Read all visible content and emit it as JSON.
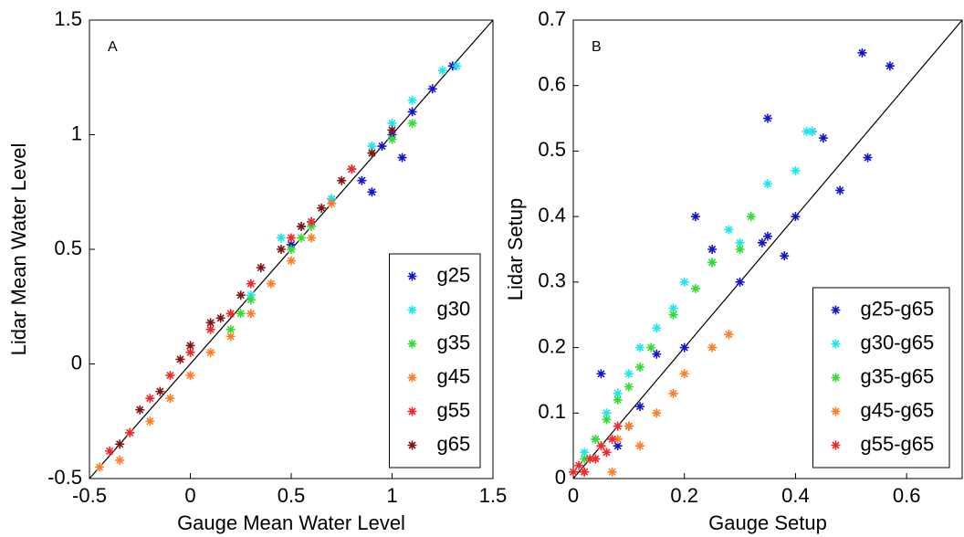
{
  "chart_data": [
    {
      "type": "scatter",
      "annotation": "A",
      "xlabel": "Gauge Mean Water Level",
      "ylabel": "Lidar Mean Water Level",
      "xlim": [
        -0.5,
        1.5
      ],
      "ylim": [
        -0.5,
        1.5
      ],
      "xticks": [
        -0.5,
        0,
        0.5,
        1,
        1.5
      ],
      "yticks": [
        -0.5,
        0,
        0.5,
        1,
        1.5
      ],
      "diagonal": true,
      "legend": "lower right",
      "marker": "*",
      "series": [
        {
          "name": "g25",
          "color": "#1414c8",
          "x": [
            0.7,
            0.8,
            0.85,
            0.9,
            0.95,
            1.0,
            1.05,
            1.1,
            1.2,
            1.3,
            0.6,
            0.5
          ],
          "values": [
            0.72,
            0.85,
            0.8,
            0.75,
            0.95,
            1.0,
            0.9,
            1.1,
            1.2,
            1.3,
            0.62,
            0.52
          ]
        },
        {
          "name": "g30",
          "color": "#1ee6f0",
          "x": [
            0.3,
            0.45,
            0.55,
            0.7,
            0.8,
            0.9,
            1.0,
            1.1,
            1.25,
            1.32
          ],
          "values": [
            0.3,
            0.55,
            0.6,
            0.72,
            0.85,
            0.95,
            1.05,
            1.15,
            1.28,
            1.3
          ]
        },
        {
          "name": "g35",
          "color": "#32dc32",
          "x": [
            0.2,
            0.25,
            0.3,
            0.5,
            0.55,
            0.6,
            0.9,
            1.0,
            1.1
          ],
          "values": [
            0.15,
            0.22,
            0.28,
            0.5,
            0.55,
            0.6,
            0.92,
            0.98,
            1.05
          ]
        },
        {
          "name": "g45",
          "color": "#ff7d23",
          "x": [
            -0.45,
            -0.35,
            -0.3,
            -0.2,
            -0.1,
            0,
            0.1,
            0.2,
            0.3,
            0.4,
            0.5,
            0.6,
            0.7
          ],
          "values": [
            -0.45,
            -0.42,
            -0.3,
            -0.25,
            -0.15,
            -0.05,
            0.05,
            0.12,
            0.22,
            0.35,
            0.45,
            0.55,
            0.7
          ]
        },
        {
          "name": "g55",
          "color": "#f02828",
          "x": [
            -0.4,
            -0.3,
            -0.2,
            -0.1,
            0,
            0.1,
            0.2,
            0.3,
            0.5,
            0.6,
            0.8
          ],
          "values": [
            -0.38,
            -0.3,
            -0.15,
            -0.05,
            0.05,
            0.15,
            0.22,
            0.35,
            0.55,
            0.62,
            0.85
          ]
        },
        {
          "name": "g65",
          "color": "#801414",
          "x": [
            -0.35,
            -0.25,
            -0.15,
            -0.05,
            0,
            0.1,
            0.15,
            0.25,
            0.35,
            0.45,
            0.55,
            0.65,
            0.75,
            0.9,
            1.0
          ],
          "values": [
            -0.35,
            -0.2,
            -0.12,
            0.02,
            0.08,
            0.18,
            0.2,
            0.3,
            0.42,
            0.5,
            0.6,
            0.68,
            0.8,
            0.92,
            1.02
          ]
        }
      ]
    },
    {
      "type": "scatter",
      "annotation": "B",
      "xlabel": "Gauge Setup",
      "ylabel": "Lidar Setup",
      "xlim": [
        0,
        0.7
      ],
      "ylim": [
        0,
        0.7
      ],
      "xticks": [
        0,
        0.2,
        0.4,
        0.6
      ],
      "yticks": [
        0,
        0.1,
        0.2,
        0.3,
        0.4,
        0.5,
        0.6,
        0.7
      ],
      "diagonal": true,
      "legend": "lower right",
      "marker": "*",
      "series": [
        {
          "name": "g25-g65",
          "color": "#1414c8",
          "x": [
            0.05,
            0.08,
            0.1,
            0.12,
            0.15,
            0.2,
            0.22,
            0.25,
            0.3,
            0.35,
            0.35,
            0.4,
            0.43,
            0.45,
            0.48,
            0.52,
            0.53,
            0.57,
            0.34,
            0.38
          ],
          "values": [
            0.16,
            0.05,
            0.08,
            0.11,
            0.19,
            0.2,
            0.4,
            0.35,
            0.3,
            0.55,
            0.37,
            0.4,
            0.53,
            0.52,
            0.44,
            0.65,
            0.49,
            0.63,
            0.36,
            0.34
          ]
        },
        {
          "name": "g30-g65",
          "color": "#1ee6f0",
          "x": [
            0.02,
            0.04,
            0.06,
            0.08,
            0.1,
            0.12,
            0.15,
            0.18,
            0.2,
            0.25,
            0.28,
            0.3,
            0.35,
            0.4,
            0.42,
            0.43
          ],
          "values": [
            0.04,
            0.06,
            0.1,
            0.13,
            0.16,
            0.2,
            0.23,
            0.26,
            0.3,
            0.33,
            0.38,
            0.36,
            0.45,
            0.47,
            0.53,
            0.53
          ]
        },
        {
          "name": "g35-g65",
          "color": "#32dc32",
          "x": [
            0.02,
            0.04,
            0.06,
            0.08,
            0.1,
            0.12,
            0.14,
            0.18,
            0.22,
            0.25,
            0.3,
            0.32
          ],
          "values": [
            0.03,
            0.06,
            0.09,
            0.12,
            0.14,
            0.17,
            0.2,
            0.25,
            0.29,
            0.33,
            0.35,
            0.4
          ]
        },
        {
          "name": "g45-g65",
          "color": "#ff7d23",
          "x": [
            0.02,
            0.04,
            0.05,
            0.07,
            0.08,
            0.1,
            0.12,
            0.15,
            0.18,
            0.2,
            0.25,
            0.28
          ],
          "values": [
            0.01,
            0.03,
            0.05,
            0.01,
            0.06,
            0.08,
            0.05,
            0.1,
            0.13,
            0.16,
            0.2,
            0.22
          ]
        },
        {
          "name": "g55-g65",
          "color": "#f02828",
          "x": [
            0,
            0.01,
            0.02,
            0.03,
            0.04,
            0.05,
            0.06,
            0.07,
            0.08
          ],
          "values": [
            0.01,
            0.02,
            0.01,
            0.03,
            0.03,
            0.05,
            0.04,
            0.06,
            0.08
          ]
        }
      ]
    }
  ]
}
